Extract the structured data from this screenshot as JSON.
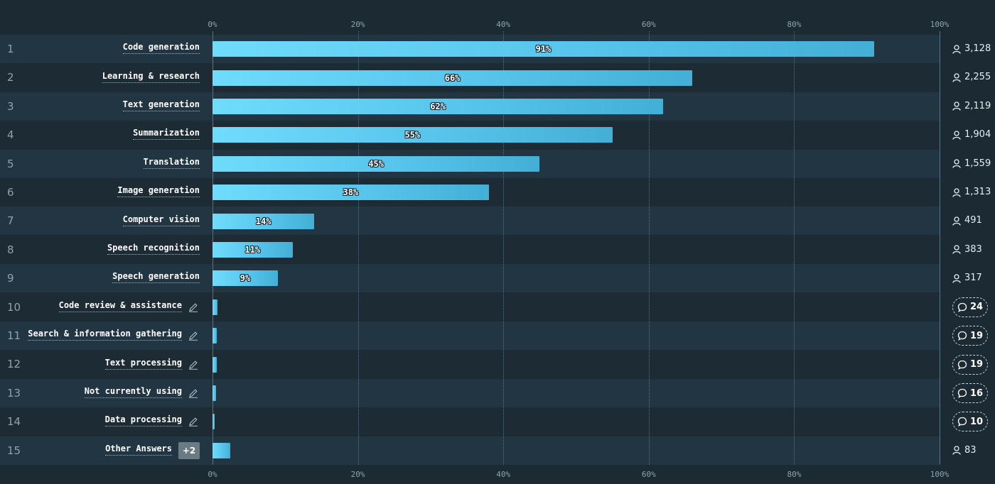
{
  "chart_data": {
    "type": "bar",
    "orientation": "horizontal",
    "xlim": [
      0,
      100
    ],
    "x_ticks": [
      "0%",
      "20%",
      "40%",
      "60%",
      "80%",
      "100%"
    ],
    "colors": {
      "bar": "#5ccbf0",
      "background": "#1b2a33"
    },
    "rows": [
      {
        "rank": "1",
        "category": "Code generation",
        "value": 91,
        "value_label": "91%",
        "count": "3,128",
        "count_icon": "user-icon"
      },
      {
        "rank": "2",
        "category": "Learning & research",
        "value": 66,
        "value_label": "66%",
        "count": "2,255",
        "count_icon": "user-icon"
      },
      {
        "rank": "3",
        "category": "Text generation",
        "value": 62,
        "value_label": "62%",
        "count": "2,119",
        "count_icon": "user-icon"
      },
      {
        "rank": "4",
        "category": "Summarization",
        "value": 55,
        "value_label": "55%",
        "count": "1,904",
        "count_icon": "user-icon"
      },
      {
        "rank": "5",
        "category": "Translation",
        "value": 45,
        "value_label": "45%",
        "count": "1,559",
        "count_icon": "user-icon"
      },
      {
        "rank": "6",
        "category": "Image generation",
        "value": 38,
        "value_label": "38%",
        "count": "1,313",
        "count_icon": "user-icon"
      },
      {
        "rank": "7",
        "category": "Computer vision",
        "value": 14,
        "value_label": "14%",
        "count": "491",
        "count_icon": "user-icon"
      },
      {
        "rank": "8",
        "category": "Speech recognition",
        "value": 11,
        "value_label": "11%",
        "count": "383",
        "count_icon": "user-icon"
      },
      {
        "rank": "9",
        "category": "Speech generation",
        "value": 9,
        "value_label": "9%",
        "count": "317",
        "count_icon": "user-icon"
      },
      {
        "rank": "10",
        "category": "Code review & assistance",
        "value": 0.7,
        "comments": "24",
        "count_icon": "comment-icon",
        "editable": true
      },
      {
        "rank": "11",
        "category": "Search & information gathering",
        "value": 0.55,
        "comments": "19",
        "count_icon": "comment-icon",
        "editable": true
      },
      {
        "rank": "12",
        "category": "Text processing",
        "value": 0.55,
        "comments": "19",
        "count_icon": "comment-icon",
        "editable": true
      },
      {
        "rank": "13",
        "category": "Not currently using",
        "value": 0.45,
        "comments": "16",
        "count_icon": "comment-icon",
        "editable": true
      },
      {
        "rank": "14",
        "category": "Data processing",
        "value": 0.25,
        "comments": "10",
        "count_icon": "comment-icon",
        "editable": true
      },
      {
        "rank": "15",
        "category": "Other Answers",
        "value": 2.4,
        "count": "83",
        "count_icon": "user-icon",
        "more_badge": "+2"
      }
    ]
  }
}
